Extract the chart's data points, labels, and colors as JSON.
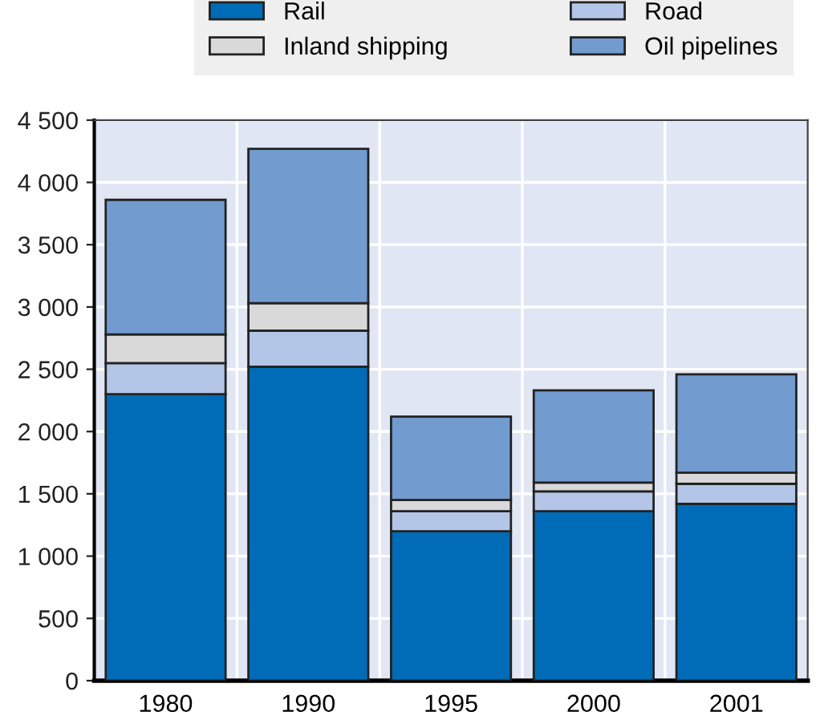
{
  "chart_data": {
    "type": "bar",
    "stacked": true,
    "categories": [
      "1980",
      "1990",
      "1995",
      "2000",
      "2001"
    ],
    "series": [
      {
        "name": "Rail",
        "color": "#006bb6",
        "values": [
          2300,
          2520,
          1200,
          1360,
          1420
        ]
      },
      {
        "name": "Road",
        "color": "#b3c6e7",
        "values": [
          250,
          290,
          160,
          160,
          160
        ]
      },
      {
        "name": "Inland shipping",
        "color": "#d9d9d9",
        "values": [
          230,
          220,
          90,
          70,
          90
        ]
      },
      {
        "name": "Oil pipelines",
        "color": "#729bcf",
        "values": [
          1080,
          1240,
          670,
          740,
          790
        ]
      }
    ],
    "ylim": [
      0,
      4500
    ],
    "yticks": [
      0,
      500,
      {
        "value": 1000,
        "label": "1 000"
      },
      {
        "value": 1500,
        "label": "1 500"
      },
      {
        "value": 2000,
        "label": "2 000"
      },
      {
        "value": 2500,
        "label": "2 500"
      },
      {
        "value": 3000,
        "label": "3 000"
      },
      {
        "value": 3500,
        "label": "3 500"
      },
      {
        "value": 4000,
        "label": "4 000"
      },
      {
        "value": 4500,
        "label": "4 500"
      }
    ],
    "grid": true,
    "legend": "top"
  }
}
